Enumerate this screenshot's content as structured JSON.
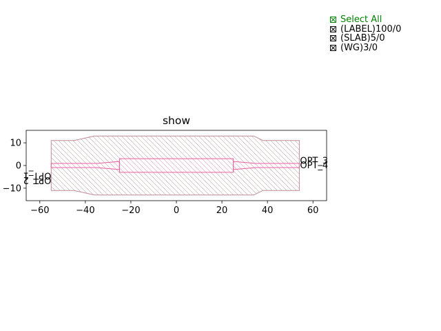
{
  "chart_data": {
    "type": "layout",
    "title": "show",
    "xlim": [
      -66,
      66
    ],
    "ylim": [
      -15.5,
      15.5
    ],
    "xticks": [
      -60,
      -40,
      -20,
      0,
      20,
      40,
      60
    ],
    "yticks": [
      -10,
      0,
      10
    ],
    "xticklabels": [
      "−60",
      "−40",
      "−20",
      "0",
      "20",
      "40",
      "60"
    ],
    "yticklabels": [
      "−10",
      "0",
      "10"
    ],
    "colors": {
      "slab": "#c08a92",
      "wg": "#e8609e",
      "select_all": "#008000"
    },
    "polygons": [
      {
        "layer": "SLAB",
        "points": [
          [
            -55,
            11
          ],
          [
            -45,
            11
          ],
          [
            -36,
            13
          ],
          [
            34,
            13
          ],
          [
            38,
            11
          ],
          [
            54,
            11
          ],
          [
            54,
            -11
          ],
          [
            38,
            -11
          ],
          [
            34,
            -13
          ],
          [
            -36,
            -13
          ],
          [
            -45,
            -11
          ],
          [
            -55,
            -11
          ]
        ]
      },
      {
        "layer": "WG",
        "points": [
          [
            -55,
            0.9
          ],
          [
            -35,
            0.9
          ],
          [
            -25,
            1.8
          ],
          [
            -25,
            -1.8
          ],
          [
            -35,
            -0.9
          ],
          [
            -55,
            -0.9
          ]
        ]
      },
      {
        "layer": "WG",
        "points": [
          [
            -25,
            3
          ],
          [
            25,
            3
          ],
          [
            25,
            -3
          ],
          [
            -25,
            -3
          ]
        ]
      },
      {
        "layer": "WG",
        "points": [
          [
            25,
            1.8
          ],
          [
            35,
            0.9
          ],
          [
            54,
            0.9
          ],
          [
            54,
            -0.9
          ],
          [
            35,
            -0.9
          ],
          [
            25,
            -1.8
          ]
        ]
      }
    ],
    "port_labels": [
      {
        "text": "OPT_1",
        "x": -55,
        "y": -2,
        "side": "left"
      },
      {
        "text": "OPT_2",
        "x": -55,
        "y": -4,
        "side": "left"
      },
      {
        "text": "OPT_3",
        "x": 54,
        "y": 2,
        "side": "right"
      },
      {
        "text": "OPT_4",
        "x": 54,
        "y": 0,
        "side": "right"
      }
    ]
  },
  "legend": {
    "select_all": "Select All",
    "items": [
      {
        "label": "(LABEL)100/0"
      },
      {
        "label": "(SLAB)5/0"
      },
      {
        "label": "(WG)3/0"
      }
    ]
  }
}
